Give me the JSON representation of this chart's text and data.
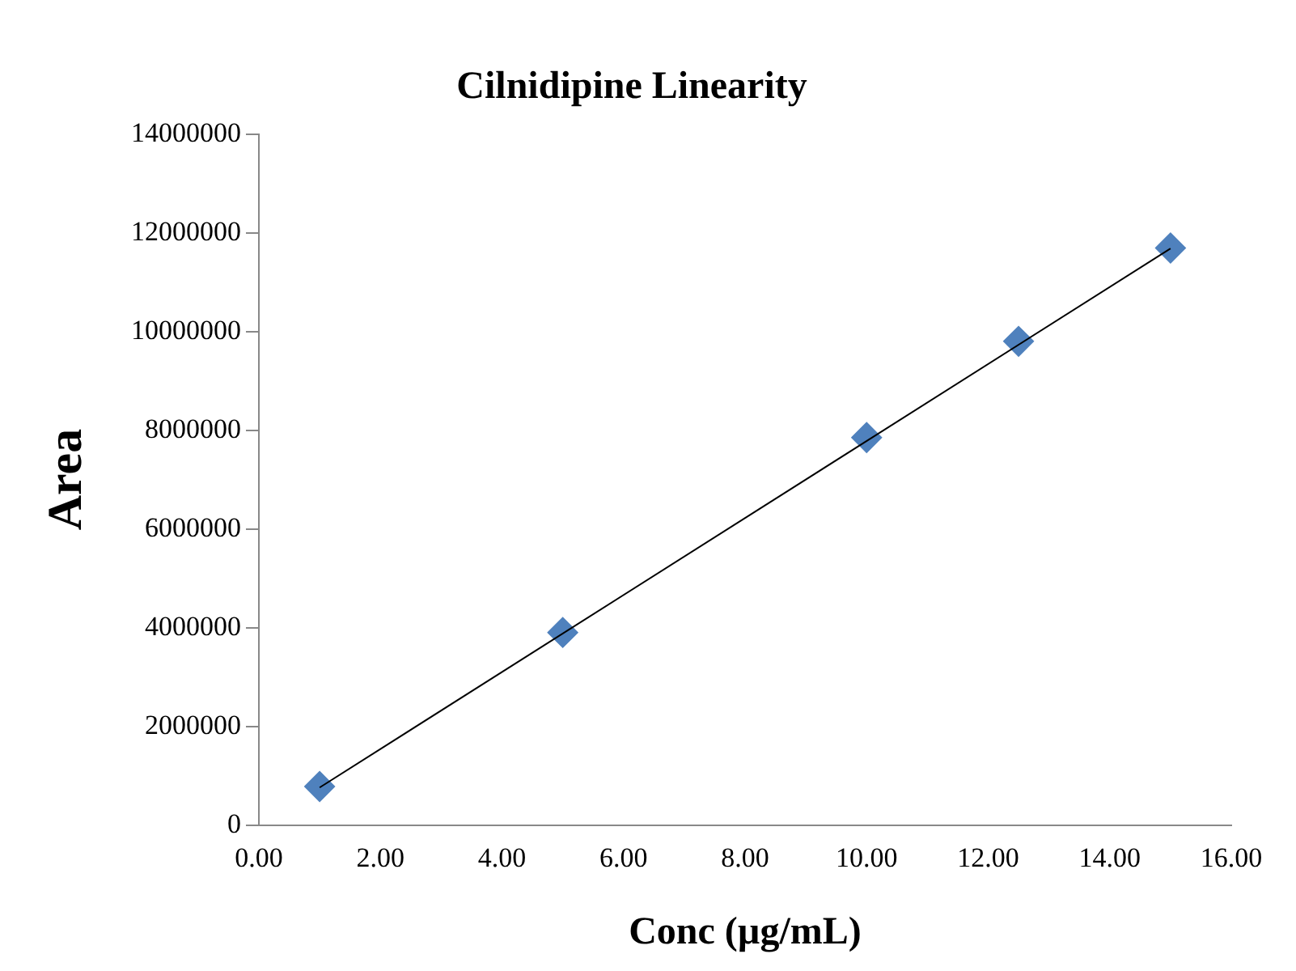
{
  "chart_data": {
    "type": "scatter",
    "title": "Cilnidipine Linearity",
    "xlabel": "Conc (µg/mL)",
    "ylabel": "Area",
    "x": [
      1,
      5,
      10,
      12.5,
      15
    ],
    "series": [
      {
        "type": "scatter",
        "color": "#4f81bd",
        "values": [
          780000,
          3900000,
          7850000,
          9800000,
          11690000
        ],
        "marker": "diamond"
      },
      {
        "type": "line",
        "color": "#000000",
        "x": [
          1,
          15
        ],
        "values": [
          760000,
          11680000
        ],
        "marker": "none"
      }
    ],
    "xlim": [
      0,
      16
    ],
    "xticks": [
      {
        "value": 0,
        "label": "0.00"
      },
      {
        "value": 2,
        "label": "2.00"
      },
      {
        "value": 4,
        "label": "4.00"
      },
      {
        "value": 6,
        "label": "6.00"
      },
      {
        "value": 8,
        "label": "8.00"
      },
      {
        "value": 10,
        "label": "10.00"
      },
      {
        "value": 12,
        "label": "12.00"
      },
      {
        "value": 14,
        "label": "14.00"
      },
      {
        "value": 16,
        "label": "16.00"
      }
    ],
    "ylim": [
      0,
      14000000
    ],
    "yticks": [
      0,
      2000000,
      4000000,
      6000000,
      8000000,
      10000000,
      12000000,
      14000000
    ],
    "grid": false,
    "legend": false
  }
}
